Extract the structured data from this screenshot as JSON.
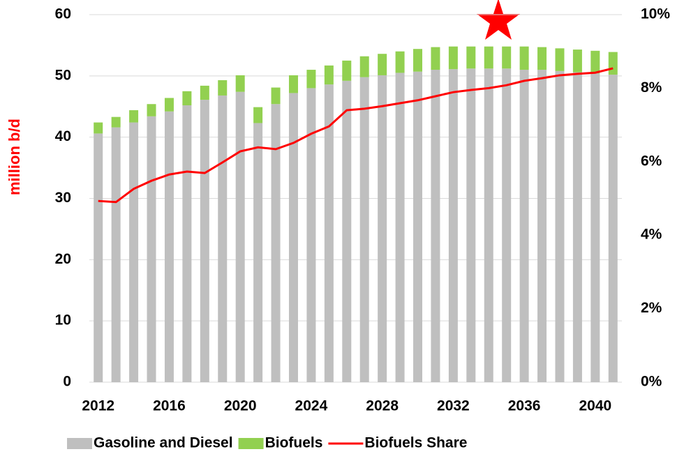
{
  "chart_data": {
    "type": "bar",
    "ylabel": "million b/d",
    "categories": [
      2012,
      null,
      null,
      null,
      2016,
      null,
      null,
      null,
      2020,
      null,
      null,
      null,
      2024,
      null,
      null,
      null,
      2028,
      null,
      null,
      null,
      2032,
      null,
      null,
      null,
      2036,
      null,
      null,
      null,
      2040,
      null
    ],
    "series": [
      {
        "name": "Gasoline and Diesel",
        "color": "#bfbfbf",
        "values": [
          40.6,
          41.6,
          42.4,
          43.4,
          44.2,
          45.2,
          46.1,
          46.8,
          47.4,
          42.3,
          45.4,
          47.2,
          48.0,
          48.6,
          49.2,
          49.8,
          50.1,
          50.5,
          50.7,
          51.0,
          51.1,
          51.2,
          51.2,
          51.2,
          51.0,
          51.0,
          50.8,
          50.6,
          50.4,
          50.2
        ]
      },
      {
        "name": "Biofuels",
        "color": "#92d050",
        "values": [
          1.8,
          1.7,
          2.0,
          2.0,
          2.2,
          2.3,
          2.3,
          2.5,
          2.7,
          2.6,
          2.7,
          2.9,
          3.0,
          3.1,
          3.3,
          3.4,
          3.5,
          3.5,
          3.7,
          3.7,
          3.7,
          3.6,
          3.6,
          3.6,
          3.8,
          3.7,
          3.7,
          3.7,
          3.7,
          3.7
        ]
      },
      {
        "name": "Biofuels Share",
        "color": "#ff0000",
        "type": "line",
        "axis": "y2",
        "values": [
          4.93,
          4.9,
          5.26,
          5.48,
          5.65,
          5.73,
          5.69,
          5.98,
          6.28,
          6.39,
          6.34,
          6.51,
          6.76,
          6.96,
          7.4,
          7.44,
          7.51,
          7.59,
          7.67,
          7.78,
          7.89,
          7.95,
          8.0,
          8.08,
          8.2,
          8.27,
          8.35,
          8.39,
          8.42,
          8.54
        ]
      }
    ],
    "ylim": [
      0,
      60
    ],
    "yticks": [
      0,
      10,
      20,
      30,
      40,
      50,
      60
    ],
    "y2lim": [
      0,
      10
    ],
    "y2ticks": [
      {
        "value": 0,
        "label": "0%"
      },
      {
        "value": 2,
        "label": "2%"
      },
      {
        "value": 4,
        "label": "4%"
      },
      {
        "value": 6,
        "label": "6%"
      },
      {
        "value": 8,
        "label": "8%"
      },
      {
        "value": 10,
        "label": "10%"
      }
    ],
    "grid": true,
    "legend": "bottom"
  }
}
